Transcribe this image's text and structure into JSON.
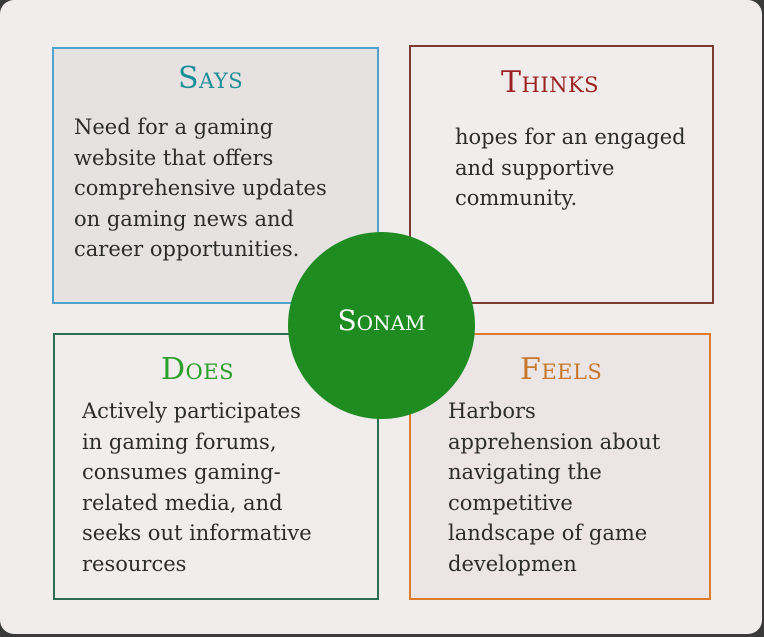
{
  "persona": {
    "name": "Sonam"
  },
  "quadrants": {
    "says": {
      "heading": "Says",
      "text": "Need for a gaming\nwebsite that offers\ncomprehensive updates\non gaming news and\ncareer opportunities."
    },
    "thinks": {
      "heading": "Thinks",
      "text": "hopes for an engaged\nand supportive\ncommunity."
    },
    "does": {
      "heading": "Does",
      "text": "Actively participates\nin gaming forums,\nconsumes gaming-\nrelated media, and\nseeks out informative\nresources"
    },
    "feels": {
      "heading": "Feels",
      "text": "Harbors\napprehension about\nnavigating the\ncompetitive\nlandscape of game\ndevelopmen"
    }
  },
  "colors": {
    "says_heading": "#1c8f99",
    "thinks_heading": "#9c2222",
    "does_heading": "#2aa02a",
    "feels_heading": "#c8772b",
    "center_fill": "#1f8c22"
  }
}
